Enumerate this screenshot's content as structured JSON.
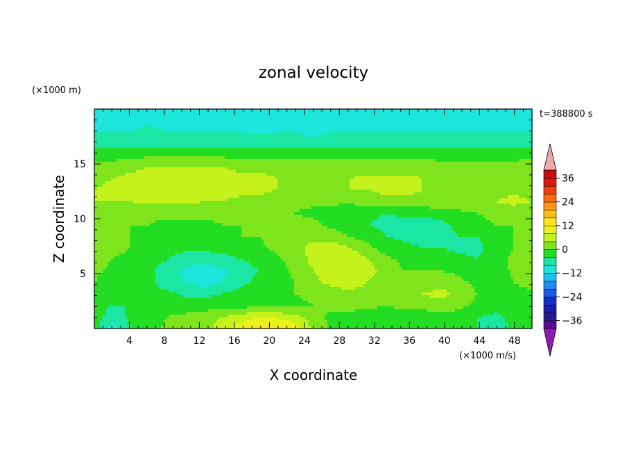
{
  "chart_data": {
    "type": "heatmap",
    "title": "zonal velocity",
    "xlabel": "X coordinate",
    "ylabel": "Z coordinate",
    "x_unit_label": "(×1000 m/s)",
    "y_unit_label": "(×1000 m)",
    "time_label": "t=388800 s",
    "xlim": [
      0,
      50
    ],
    "ylim": [
      0,
      20
    ],
    "x_ticks": [
      4,
      8,
      12,
      16,
      20,
      24,
      28,
      32,
      36,
      40,
      44,
      48
    ],
    "y_ticks": [
      5,
      10,
      15
    ],
    "colorbar": {
      "range": [
        -40,
        40
      ],
      "step": 4,
      "tick_values": [
        -36,
        -24,
        -12,
        0,
        12,
        24,
        36
      ],
      "tick_labels": [
        "−36",
        "−24",
        "−12",
        "0",
        "12",
        "24",
        "36"
      ],
      "colors": [
        "#5c0a96",
        "#2a1890",
        "#1c1ca8",
        "#1030c8",
        "#1c58e8",
        "#1c8cf2",
        "#18c4f2",
        "#1ce6dc",
        "#1ce6a4",
        "#22dd22",
        "#7ee41c",
        "#c6f21c",
        "#eaf21c",
        "#ffe61c",
        "#ffbe12",
        "#ff9610",
        "#ff6a10",
        "#f53e10",
        "#e01810",
        "#c80c10"
      ],
      "over_color": "#f0a8a8",
      "under_color": "#8c1cb4"
    },
    "field": {
      "nx": 25,
      "nz": 20,
      "values": [
        [
          -2,
          -10,
          -4,
          -2,
          1,
          1,
          2,
          6,
          10,
          13,
          14,
          11,
          3,
          -1,
          -2,
          -2,
          -1,
          -3,
          -4,
          -3,
          -2,
          -4,
          -6,
          -3,
          -1
        ],
        [
          -2,
          -6,
          -3,
          -2,
          0,
          1,
          2,
          4,
          6,
          8,
          7,
          5,
          2,
          -1,
          -2,
          -3,
          -1,
          -3,
          -3,
          -2,
          -2,
          -4,
          -5,
          -3,
          -1
        ],
        [
          -3,
          -4,
          -4,
          -2,
          -2,
          -2,
          -2,
          -2,
          -2,
          -1,
          -1,
          -1,
          0,
          1,
          2,
          1,
          0,
          1,
          2,
          3,
          1,
          -1,
          -2,
          -3,
          -1
        ],
        [
          -2,
          -4,
          -3,
          -3,
          -3,
          -5,
          -5,
          -4,
          -3,
          -2,
          -2,
          0,
          1,
          2,
          3,
          2,
          0,
          2,
          4,
          5,
          3,
          0,
          -1,
          -2,
          -1
        ],
        [
          0,
          -2,
          -3,
          -3,
          -6,
          -8,
          -10,
          -8,
          -5,
          -3,
          -2,
          0,
          3,
          5,
          6,
          4,
          1,
          0,
          2,
          3,
          1,
          -1,
          -2,
          0,
          2
        ],
        [
          1,
          -1,
          -2,
          -3,
          -6,
          -9,
          -11,
          -9,
          -6,
          -4,
          -2,
          1,
          4,
          6,
          8,
          6,
          2,
          0,
          0,
          0,
          -1,
          -3,
          -3,
          1,
          4
        ],
        [
          2,
          0,
          -2,
          -2,
          -4,
          -6,
          -6,
          -5,
          -4,
          -3,
          -1,
          2,
          5,
          8,
          7,
          4,
          1,
          -1,
          -2,
          -2,
          -3,
          -4,
          -2,
          1,
          3
        ],
        [
          3,
          2,
          0,
          -1,
          -2,
          -3,
          -3,
          -3,
          -2,
          -1,
          1,
          3,
          5,
          6,
          4,
          1,
          -2,
          -3,
          -4,
          -4,
          -5,
          -5,
          -2,
          0,
          2
        ],
        [
          2,
          1,
          0,
          -1,
          -1,
          -1,
          -1,
          -1,
          0,
          0,
          2,
          3,
          3,
          2,
          0,
          -2,
          -4,
          -5,
          -6,
          -5,
          -4,
          -4,
          -2,
          0,
          1
        ],
        [
          1,
          1,
          0,
          0,
          -1,
          -1,
          -1,
          0,
          0,
          0,
          1,
          1,
          1,
          -1,
          -3,
          -4,
          -5,
          -6,
          -6,
          -5,
          -3,
          -2,
          0,
          0,
          1
        ],
        [
          2,
          2,
          2,
          1,
          1,
          1,
          1,
          2,
          1,
          1,
          1,
          0,
          -1,
          -2,
          -3,
          -3,
          -4,
          -3,
          -3,
          -2,
          -1,
          0,
          2,
          2,
          2
        ],
        [
          4,
          4,
          4,
          5,
          5,
          5,
          4,
          4,
          3,
          3,
          2,
          1,
          1,
          1,
          1,
          2,
          3,
          3,
          3,
          3,
          3,
          4,
          4,
          5,
          4
        ],
        [
          4,
          5,
          5,
          6,
          6,
          6,
          6,
          6,
          5,
          5,
          4,
          3,
          3,
          3,
          4,
          4,
          5,
          5,
          4,
          4,
          4,
          4,
          3,
          3,
          3
        ],
        [
          3,
          4,
          5,
          5,
          6,
          6,
          7,
          6,
          5,
          5,
          4,
          3,
          3,
          4,
          4,
          5,
          5,
          5,
          4,
          3,
          3,
          3,
          2,
          2,
          2
        ],
        [
          2,
          2,
          3,
          4,
          4,
          4,
          4,
          4,
          3,
          3,
          3,
          2,
          2,
          2,
          2,
          2,
          2,
          2,
          2,
          1,
          1,
          1,
          1,
          1,
          2
        ],
        [
          -2,
          -2,
          -1,
          -1,
          -1,
          -1,
          -1,
          -1,
          -1,
          -1,
          -1,
          -1,
          -1,
          -1,
          -1,
          -1,
          -1,
          -1,
          -1,
          -1,
          -1,
          -1,
          -1,
          -1,
          -1
        ],
        [
          -5,
          -5,
          -6,
          -5,
          -5,
          -5,
          -5,
          -5,
          -5,
          -5,
          -5,
          -5,
          -5,
          -5,
          -5,
          -5,
          -5,
          -5,
          -5,
          -5,
          -5,
          -5,
          -5,
          -5,
          -5
        ],
        [
          -8,
          -8,
          -8,
          -7,
          -8,
          -8,
          -8,
          -8,
          -8,
          -9,
          -8,
          -8,
          -10,
          -8,
          -8,
          -8,
          -8,
          -8,
          -8,
          -8,
          -8,
          -8,
          -8,
          -8,
          -8
        ],
        [
          -9,
          -9,
          -9,
          -9,
          -9,
          -9,
          -9,
          -9,
          -9,
          -9,
          -9,
          -9,
          -9,
          -9,
          -9,
          -9,
          -9,
          -9,
          -9,
          -9,
          -9,
          -9,
          -9,
          -9,
          -9
        ],
        [
          -9,
          -9,
          -9,
          -9,
          -9,
          -9,
          -9,
          -9,
          -9,
          -9,
          -9,
          -9,
          -9,
          -9,
          -9,
          -9,
          -9,
          -9,
          -9,
          -9,
          -9,
          -9,
          -9,
          -9,
          -9
        ]
      ]
    }
  }
}
